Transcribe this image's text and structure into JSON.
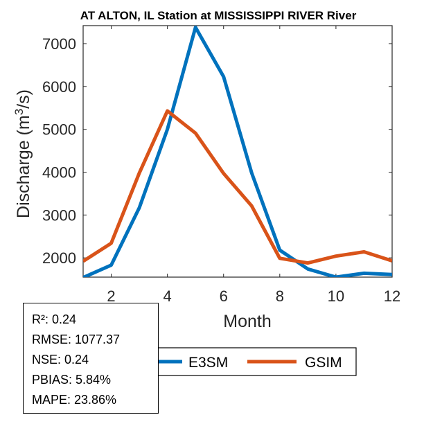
{
  "chart_data": {
    "type": "line",
    "title": "AT ALTON, IL  Station at  MISSISSIPPI RIVER  River",
    "xlabel": "Month",
    "ylabel": "Discharge (m³/s)",
    "ylabel_parts": {
      "pre": "Discharge (m",
      "sup": "3",
      "post": "/s)"
    },
    "xlim": [
      1,
      12
    ],
    "ylim": [
      1550,
      7420
    ],
    "xticks": [
      2,
      4,
      6,
      8,
      10,
      12
    ],
    "yticks": [
      2000,
      3000,
      4000,
      5000,
      6000,
      7000
    ],
    "x": [
      1,
      2,
      3,
      4,
      5,
      6,
      7,
      8,
      9,
      10,
      11,
      12
    ],
    "series": [
      {
        "name": "E3SM",
        "color": "#0072BD",
        "values": [
          1540,
          1830,
          3170,
          5000,
          7380,
          6230,
          3980,
          2180,
          1740,
          1550,
          1640,
          1610
        ]
      },
      {
        "name": "GSIM",
        "color": "#D95319",
        "values": [
          1920,
          2340,
          3980,
          5430,
          4910,
          3970,
          3210,
          1990,
          1880,
          2040,
          2140,
          1930
        ]
      }
    ],
    "grid": false,
    "legend": "bottom-center, horizontal"
  },
  "stats": [
    {
      "label": "R²: 0.24"
    },
    {
      "label": "RMSE: 1077.37"
    },
    {
      "label": "NSE: 0.24"
    },
    {
      "label": "PBIAS: 5.84%"
    },
    {
      "label": "MAPE: 23.86%"
    }
  ]
}
